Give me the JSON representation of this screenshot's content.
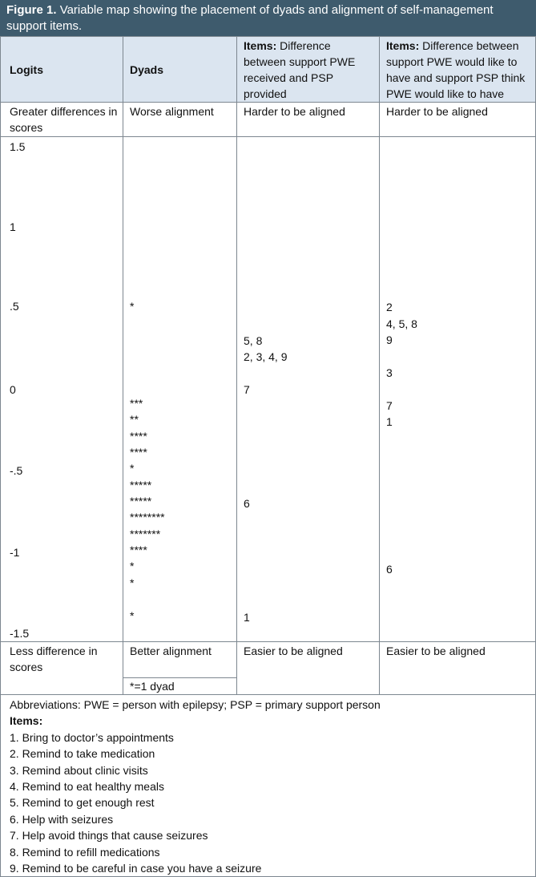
{
  "title": {
    "label": "Figure 1.",
    "text": "Variable map showing the placement of dyads and alignment of self-management support items."
  },
  "table": {
    "header": [
      {
        "text": "Logits"
      },
      {
        "text": "Dyads"
      },
      {
        "bold": "Items:",
        "text": "Difference between support PWE received and PSP provided"
      },
      {
        "bold": "Items:",
        "text": "Difference between support PWE would like to have and support PSP think PWE would like to have"
      }
    ],
    "top_row": [
      "Greater differences in scores",
      "Worse alignment",
      "Harder to be aligned",
      "Harder to be aligned"
    ],
    "logits": [
      "1.5",
      "1",
      ".5",
      "0",
      "-.5",
      "-1",
      "-1.5"
    ],
    "dyads": [
      "*",
      "***",
      "**",
      "****",
      "****",
      "*",
      "*****",
      "*****",
      "********",
      "*******",
      "****",
      "*",
      "*",
      "*"
    ],
    "items_received": [
      "5, 8",
      "2, 3, 4, 9",
      "7",
      "6",
      "1"
    ],
    "items_like": [
      "2",
      "4, 5, 8",
      "9",
      "3",
      "7",
      "1",
      "6"
    ],
    "bottom_row": [
      "Less difference in scores",
      "Better alignment",
      "Easier to be aligned",
      "Easier to be aligned"
    ],
    "note": "*=1 dyad"
  },
  "footer": {
    "abbreviations": "Abbreviations: PWE = person with epilepsy; PSP = primary support person",
    "items_heading": "Items:",
    "items": [
      "1. Bring to doctor’s appointments",
      "2. Remind to take medication",
      "3. Remind about clinic visits",
      "4. Remind to eat healthy meals",
      "5. Remind to get enough rest",
      "6. Help with seizures",
      "7. Help avoid things that cause seizures",
      "8. Remind to refill medications",
      "9. Remind to be careful in case you have a seizure"
    ]
  }
}
